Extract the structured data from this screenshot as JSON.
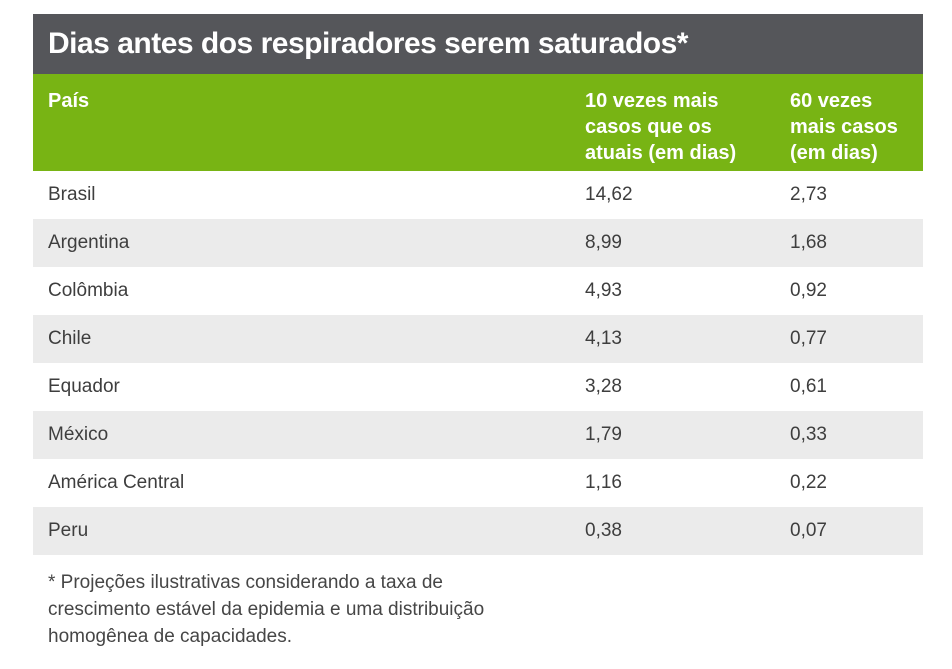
{
  "chart_data": {
    "type": "table",
    "title": "Dias antes dos respiradores serem saturados*",
    "columns": [
      "País",
      "10 vezes mais casos que os atuais (em dias)",
      "60 vezes mais casos (em dias)"
    ],
    "rows": [
      {
        "country": "Brasil",
        "days_10x": "14,62",
        "days_60x": "2,73"
      },
      {
        "country": "Argentina",
        "days_10x": "8,99",
        "days_60x": "1,68"
      },
      {
        "country": "Colômbia",
        "days_10x": "4,93",
        "days_60x": "0,92"
      },
      {
        "country": "Chile",
        "days_10x": "4,13",
        "days_60x": "0,77"
      },
      {
        "country": "Equador",
        "days_10x": "3,28",
        "days_60x": "0,61"
      },
      {
        "country": "México",
        "days_10x": "1,79",
        "days_60x": "0,33"
      },
      {
        "country": "América Central",
        "days_10x": "1,16",
        "days_60x": "0,22"
      },
      {
        "country": "Peru",
        "days_10x": "0,38",
        "days_60x": "0,07"
      }
    ],
    "footnote": "* Projeções ilustrativas considerando a taxa de\ncrescimento estável da epidemia e uma distribuição\nhomogênea de capacidades."
  },
  "table_header": {
    "col_country": "País",
    "col_10x": "10 vezes mais\ncasos que os\natuais (em dias)",
    "col_60x": "60 vezes\nmais casos\n(em dias)"
  },
  "colors": {
    "title_bar_bg": "#55565A",
    "header_green": "#78B414",
    "header_text": "#FFFFFF",
    "row_alt_bg": "#EBEBEB",
    "row_text": "#3E3E3E",
    "footnote_text": "#464646"
  }
}
